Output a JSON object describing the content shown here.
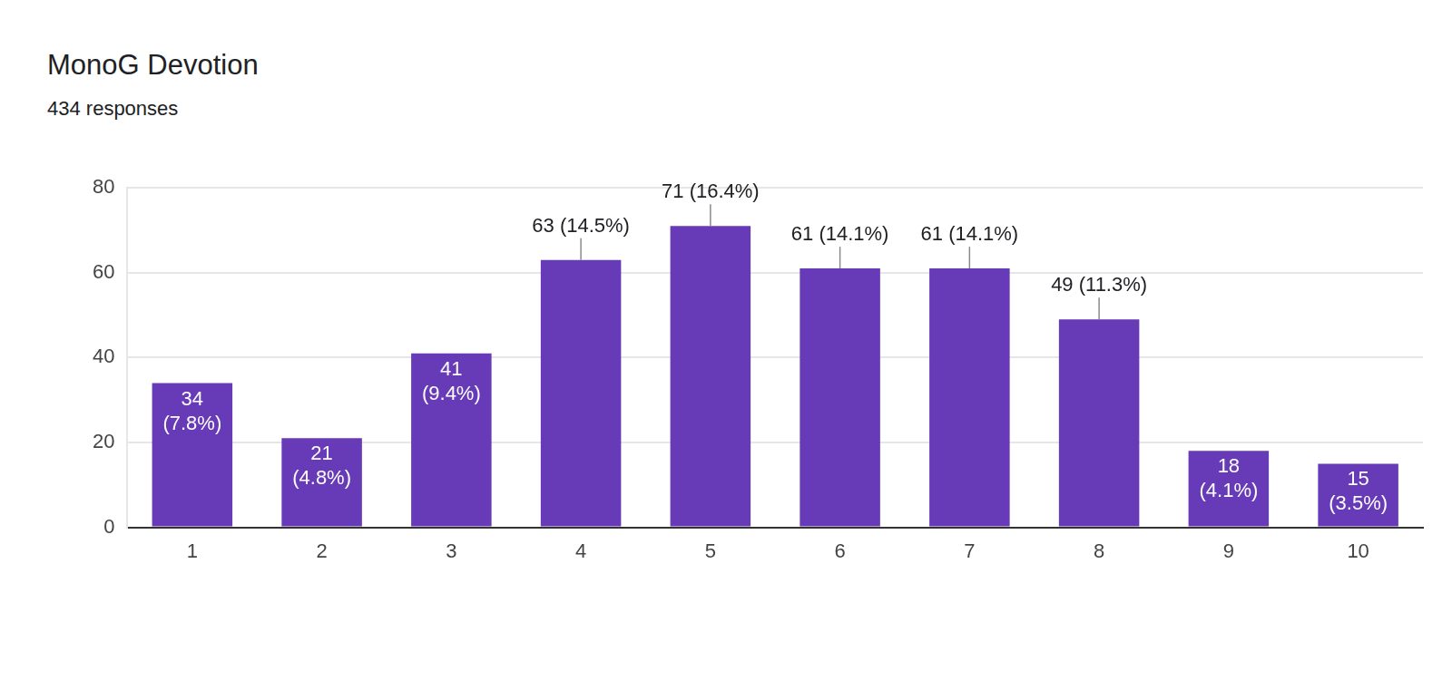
{
  "chart_data": {
    "type": "bar",
    "title": "MonoG Devotion",
    "subtitle": "434 responses",
    "categories": [
      "1",
      "2",
      "3",
      "4",
      "5",
      "6",
      "7",
      "8",
      "9",
      "10"
    ],
    "values": [
      34,
      21,
      41,
      63,
      71,
      61,
      61,
      49,
      18,
      15
    ],
    "value_labels": [
      "34 (7.8%)",
      "21 (4.8%)",
      "41 (9.4%)",
      "63 (14.5%)",
      "71 (16.4%)",
      "61 (14.1%)",
      "61 (14.1%)",
      "49 (11.3%)",
      "18 (4.1%)",
      "15 (3.5%)"
    ],
    "color": "#673ab7",
    "ylim": [
      0,
      80
    ],
    "yticks": [
      0,
      20,
      40,
      60,
      80
    ],
    "grid": true,
    "data_labels": true
  }
}
